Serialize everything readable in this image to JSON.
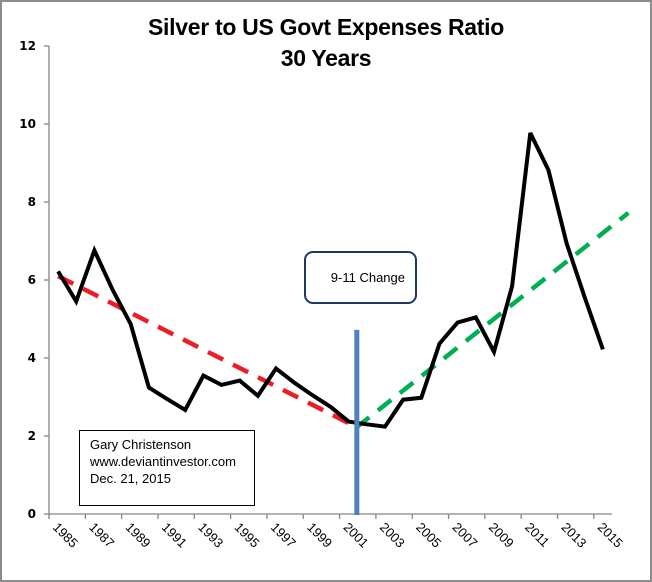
{
  "chart_data": {
    "type": "line",
    "title": "Silver to US Govt Expenses Ratio",
    "subtitle": "30 Years",
    "xlabel": "",
    "ylabel": "",
    "ylim": [
      0,
      12
    ],
    "yticks": [
      0,
      2,
      4,
      6,
      8,
      10,
      12
    ],
    "grid": false,
    "legend": "none",
    "categories": [
      1985,
      1986,
      1987,
      1988,
      1989,
      1990,
      1991,
      1992,
      1993,
      1994,
      1995,
      1996,
      1997,
      1998,
      1999,
      2000,
      2001,
      2002,
      2003,
      2004,
      2005,
      2006,
      2007,
      2008,
      2009,
      2010,
      2011,
      2012,
      2013,
      2014,
      2015
    ],
    "xtick_labels": [
      "1985",
      "1987",
      "1989",
      "1991",
      "1993",
      "1995",
      "1997",
      "1999",
      "2001",
      "2003",
      "2005",
      "2007",
      "2009",
      "2011",
      "2013",
      "2015"
    ],
    "series": [
      {
        "name": "Silver to US Govt Expenses Ratio",
        "color": "#000000",
        "values": [
          6.22,
          5.45,
          6.76,
          5.75,
          4.87,
          3.24,
          2.95,
          2.67,
          3.55,
          3.31,
          3.42,
          3.03,
          3.73,
          3.37,
          3.05,
          2.75,
          2.37,
          2.3,
          2.24,
          2.93,
          2.98,
          4.37,
          4.91,
          5.04,
          4.16,
          5.84,
          9.77,
          8.82,
          6.94,
          5.55,
          4.22
        ]
      }
    ],
    "trendlines": [
      {
        "name": "decline-trend",
        "color": "#ee1c25",
        "style": "dashed",
        "from": [
          1985,
          6.1
        ],
        "to": [
          2001,
          2.33
        ]
      },
      {
        "name": "rise-trend",
        "color": "#00b050",
        "style": "dashed",
        "from": [
          2001.4,
          2.21
        ],
        "to": [
          2016.4,
          7.72
        ]
      }
    ],
    "marker_line": {
      "name": "9-11 change marker",
      "color": "#4f81bd",
      "x": 2001.45,
      "y_from": 0,
      "y_to": 4.72
    },
    "annotations": [
      {
        "name": "callout",
        "text": "9-11 Change"
      },
      {
        "name": "credit",
        "lines": [
          "Gary Christenson",
          "www.deviantinvestor.com",
          "Dec. 21, 2015"
        ]
      }
    ]
  }
}
